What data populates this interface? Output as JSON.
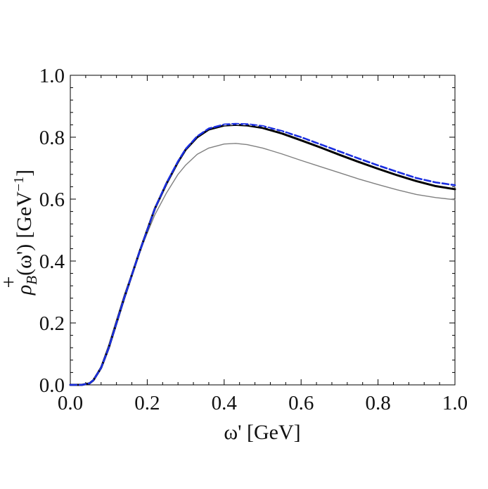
{
  "chart_data": {
    "type": "line",
    "title": "",
    "xlabel": "ω' [GeV]",
    "ylabel": "ρB+(ω') [GeV−1]",
    "ylabel_parts": {
      "symbol": "ρ",
      "superscript": "+",
      "subscript": "B",
      "argument": "(ω')",
      "unit": "[GeV",
      "unit_exponent": "−1",
      "unit_close": "]"
    },
    "xlim": [
      0.0,
      1.0
    ],
    "ylim": [
      0.0,
      1.0
    ],
    "x_ticks": [
      "0.0",
      "0.2",
      "0.4",
      "0.6",
      "0.8",
      "1.0"
    ],
    "y_ticks": [
      "0.0",
      "0.2",
      "0.4",
      "0.6",
      "0.8",
      "1.0"
    ],
    "grid": false,
    "series": [
      {
        "name": "gray-thin",
        "color": "#808080",
        "style": "solid",
        "x": [
          0.0,
          0.03,
          0.05,
          0.06,
          0.08,
          0.1,
          0.12,
          0.14,
          0.16,
          0.18,
          0.2,
          0.22,
          0.25,
          0.28,
          0.3,
          0.33,
          0.36,
          0.4,
          0.43,
          0.46,
          0.5,
          0.55,
          0.6,
          0.65,
          0.7,
          0.75,
          0.8,
          0.85,
          0.9,
          0.95,
          1.0
        ],
        "values": [
          0.0,
          0.0,
          0.005,
          0.015,
          0.06,
          0.13,
          0.21,
          0.29,
          0.36,
          0.43,
          0.49,
          0.55,
          0.62,
          0.68,
          0.71,
          0.745,
          0.765,
          0.778,
          0.78,
          0.776,
          0.765,
          0.746,
          0.725,
          0.705,
          0.685,
          0.665,
          0.647,
          0.63,
          0.615,
          0.605,
          0.598
        ]
      },
      {
        "name": "black-thick",
        "color": "#000000",
        "style": "solid",
        "x": [
          0.0,
          0.03,
          0.05,
          0.06,
          0.08,
          0.1,
          0.12,
          0.14,
          0.16,
          0.18,
          0.2,
          0.22,
          0.25,
          0.28,
          0.3,
          0.33,
          0.36,
          0.4,
          0.43,
          0.46,
          0.5,
          0.55,
          0.6,
          0.65,
          0.7,
          0.75,
          0.8,
          0.85,
          0.9,
          0.95,
          1.0
        ],
        "values": [
          0.0,
          0.0,
          0.005,
          0.015,
          0.055,
          0.12,
          0.2,
          0.28,
          0.355,
          0.43,
          0.5,
          0.57,
          0.65,
          0.72,
          0.76,
          0.8,
          0.825,
          0.838,
          0.84,
          0.838,
          0.83,
          0.812,
          0.79,
          0.767,
          0.743,
          0.72,
          0.698,
          0.677,
          0.658,
          0.642,
          0.632
        ]
      },
      {
        "name": "blue-dashed",
        "color": "#1a2ee0",
        "style": "dashed",
        "x": [
          0.0,
          0.03,
          0.05,
          0.06,
          0.08,
          0.1,
          0.12,
          0.14,
          0.16,
          0.18,
          0.2,
          0.22,
          0.25,
          0.28,
          0.3,
          0.33,
          0.36,
          0.4,
          0.43,
          0.46,
          0.5,
          0.55,
          0.6,
          0.65,
          0.7,
          0.75,
          0.8,
          0.85,
          0.9,
          0.95,
          1.0
        ],
        "values": [
          0.0,
          0.0,
          0.005,
          0.015,
          0.055,
          0.12,
          0.2,
          0.28,
          0.355,
          0.43,
          0.5,
          0.57,
          0.652,
          0.722,
          0.762,
          0.803,
          0.828,
          0.841,
          0.843,
          0.842,
          0.836,
          0.82,
          0.8,
          0.777,
          0.754,
          0.731,
          0.709,
          0.688,
          0.668,
          0.654,
          0.645
        ]
      },
      {
        "name": "white-dashed-overlay",
        "color": "#ffffff",
        "style": "dashed",
        "x": [
          0.4,
          0.43,
          0.46,
          0.5,
          0.55,
          0.6,
          0.65,
          0.7,
          0.75,
          0.8,
          0.85,
          0.9,
          0.95,
          1.0
        ],
        "values": [
          0.839,
          0.841,
          0.84,
          0.834,
          0.817,
          0.796,
          0.773,
          0.749,
          0.726,
          0.704,
          0.683,
          0.664,
          0.649,
          0.64
        ]
      }
    ]
  }
}
